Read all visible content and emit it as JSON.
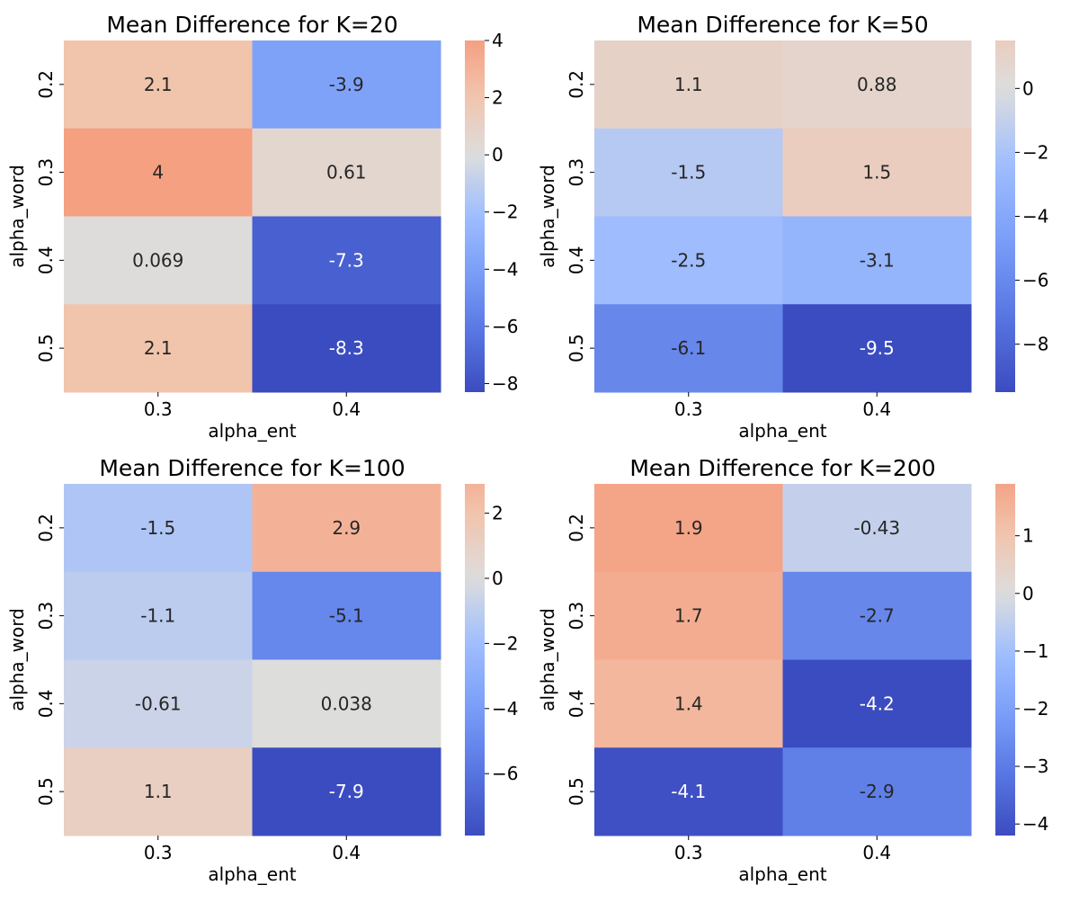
{
  "chart_data": [
    {
      "type": "heatmap",
      "title": "Mean Difference for K=20",
      "xlabel": "alpha_ent",
      "ylabel": "alpha_word",
      "x_categories": [
        "0.3",
        "0.4"
      ],
      "y_categories": [
        "0.2",
        "0.3",
        "0.4",
        "0.5"
      ],
      "values": [
        [
          2.1,
          -3.9
        ],
        [
          4.0,
          0.61
        ],
        [
          0.069,
          -7.3
        ],
        [
          2.1,
          -8.3
        ]
      ],
      "cell_labels": [
        [
          "2.1",
          "-3.9"
        ],
        [
          "4",
          "0.61"
        ],
        [
          "0.069",
          "-7.3"
        ],
        [
          "2.1",
          "-8.3"
        ]
      ],
      "colorbar": {
        "range": [
          -8.3,
          4.0
        ],
        "ticks": [
          4,
          2,
          0,
          -2,
          -4,
          -6,
          -8
        ],
        "tick_labels": [
          "4",
          "2",
          "0",
          "−2",
          "−4",
          "−6",
          "−8"
        ]
      },
      "colormap": "coolwarm"
    },
    {
      "type": "heatmap",
      "title": "Mean Difference for K=50",
      "xlabel": "alpha_ent",
      "ylabel": "alpha_word",
      "x_categories": [
        "0.3",
        "0.4"
      ],
      "y_categories": [
        "0.2",
        "0.3",
        "0.4",
        "0.5"
      ],
      "values": [
        [
          1.1,
          0.88
        ],
        [
          -1.5,
          1.5
        ],
        [
          -2.5,
          -3.1
        ],
        [
          -6.1,
          -9.5
        ]
      ],
      "cell_labels": [
        [
          "1.1",
          "0.88"
        ],
        [
          "-1.5",
          "1.5"
        ],
        [
          "-2.5",
          "-3.1"
        ],
        [
          "-6.1",
          "-9.5"
        ]
      ],
      "colorbar": {
        "range": [
          -9.5,
          1.5
        ],
        "ticks": [
          0,
          -2,
          -4,
          -6,
          -8
        ],
        "tick_labels": [
          "0",
          "−2",
          "−4",
          "−6",
          "−8"
        ]
      },
      "colormap": "coolwarm"
    },
    {
      "type": "heatmap",
      "title": "Mean Difference for K=100",
      "xlabel": "alpha_ent",
      "ylabel": "alpha_word",
      "x_categories": [
        "0.3",
        "0.4"
      ],
      "y_categories": [
        "0.2",
        "0.3",
        "0.4",
        "0.5"
      ],
      "values": [
        [
          -1.5,
          2.9
        ],
        [
          -1.1,
          -5.1
        ],
        [
          -0.61,
          0.038
        ],
        [
          1.1,
          -7.9
        ]
      ],
      "cell_labels": [
        [
          "-1.5",
          "2.9"
        ],
        [
          "-1.1",
          "-5.1"
        ],
        [
          "-0.61",
          "0.038"
        ],
        [
          "1.1",
          "-7.9"
        ]
      ],
      "colorbar": {
        "range": [
          -7.9,
          2.9
        ],
        "ticks": [
          2,
          0,
          -2,
          -4,
          -6
        ],
        "tick_labels": [
          "2",
          "0",
          "−2",
          "−4",
          "−6"
        ]
      },
      "colormap": "coolwarm"
    },
    {
      "type": "heatmap",
      "title": "Mean Difference for K=200",
      "xlabel": "alpha_ent",
      "ylabel": "alpha_word",
      "x_categories": [
        "0.3",
        "0.4"
      ],
      "y_categories": [
        "0.2",
        "0.3",
        "0.4",
        "0.5"
      ],
      "values": [
        [
          1.9,
          -0.43
        ],
        [
          1.7,
          -2.7
        ],
        [
          1.4,
          -4.2
        ],
        [
          -4.1,
          -2.9
        ]
      ],
      "cell_labels": [
        [
          "1.9",
          "-0.43"
        ],
        [
          "1.7",
          "-2.7"
        ],
        [
          "1.4",
          "-4.2"
        ],
        [
          "-4.1",
          "-2.9"
        ]
      ],
      "colorbar": {
        "range": [
          -4.2,
          1.9
        ],
        "ticks": [
          1,
          0,
          -1,
          -2,
          -3,
          -4
        ],
        "tick_labels": [
          "1",
          "0",
          "−1",
          "−2",
          "−3",
          "−4"
        ]
      },
      "colormap": "coolwarm"
    }
  ]
}
